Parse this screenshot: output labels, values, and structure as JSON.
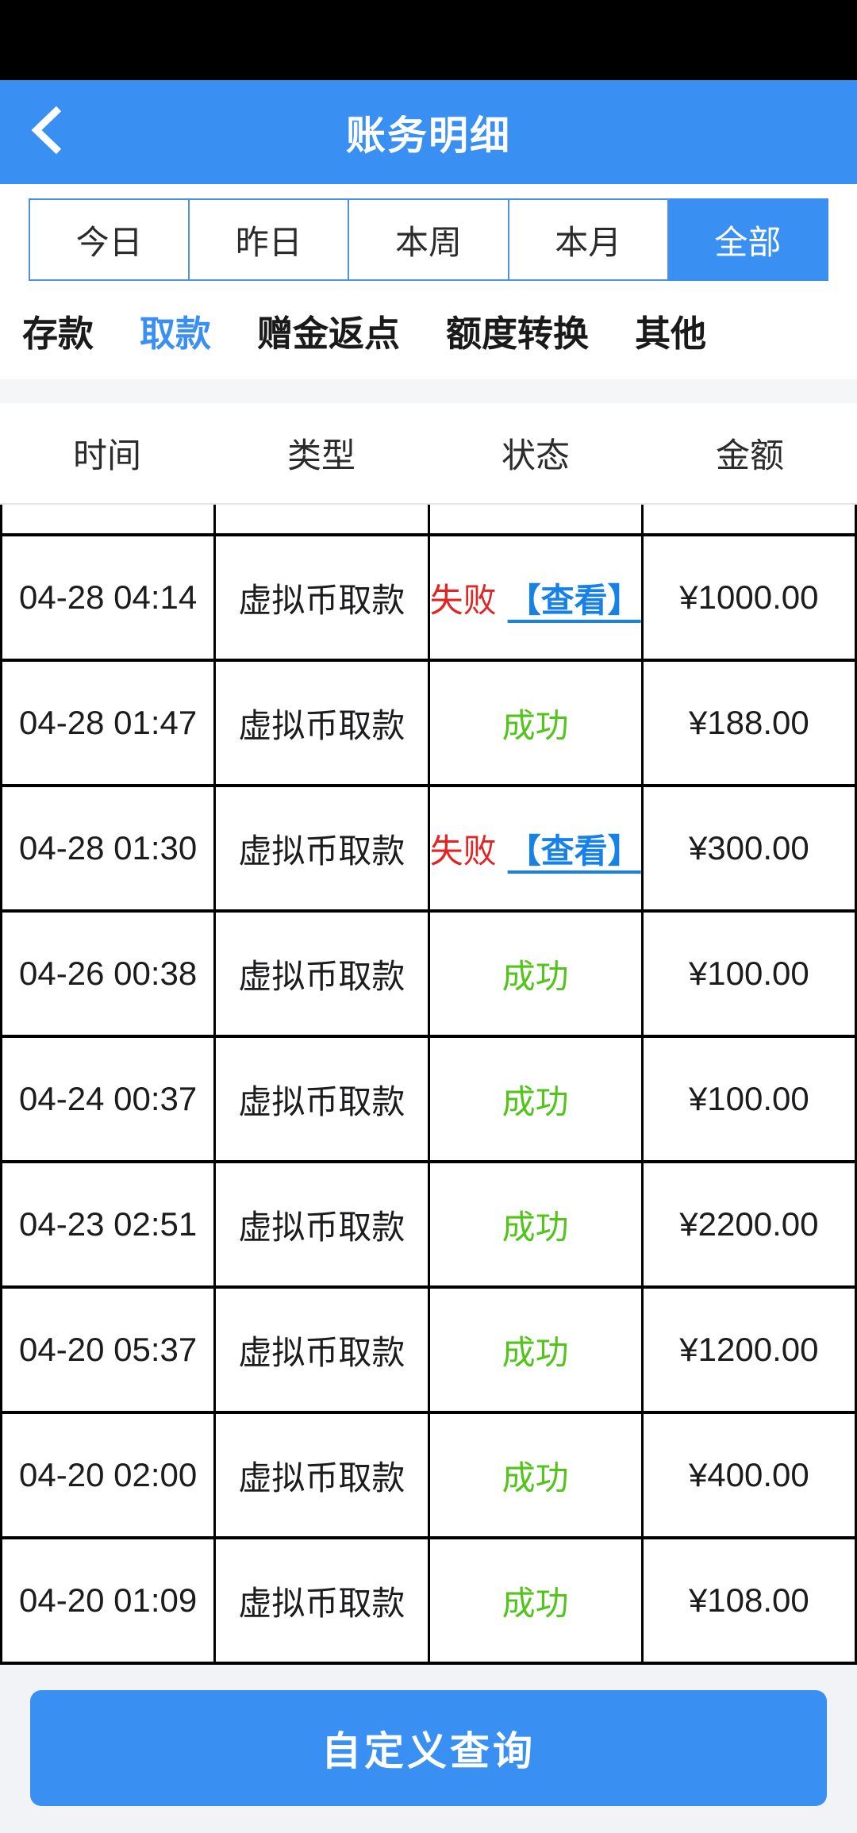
{
  "header": {
    "title": "账务明细",
    "back_icon": "chevron-left"
  },
  "date_filters": {
    "items": [
      {
        "label": "今日",
        "selected": false
      },
      {
        "label": "昨日",
        "selected": false
      },
      {
        "label": "本周",
        "selected": false
      },
      {
        "label": "本月",
        "selected": false
      },
      {
        "label": "全部",
        "selected": true
      }
    ]
  },
  "category_tabs": {
    "items": [
      {
        "label": "存款",
        "selected": false
      },
      {
        "label": "取款",
        "selected": true
      },
      {
        "label": "赠金返点",
        "selected": false
      },
      {
        "label": "额度转换",
        "selected": false
      },
      {
        "label": "其他",
        "selected": false
      }
    ]
  },
  "table": {
    "columns": [
      "时间",
      "类型",
      "状态",
      "金额"
    ],
    "rows": [
      {
        "time": "04-28 04:14",
        "type": "虚拟币取款",
        "status": "失败",
        "status_type": "failed",
        "action": "【查看】",
        "amount": "¥1000.00"
      },
      {
        "time": "04-28 01:47",
        "type": "虚拟币取款",
        "status": "成功",
        "status_type": "success",
        "action": "",
        "amount": "¥188.00"
      },
      {
        "time": "04-28 01:30",
        "type": "虚拟币取款",
        "status": "失败",
        "status_type": "failed",
        "action": "【查看】",
        "amount": "¥300.00"
      },
      {
        "time": "04-26 00:38",
        "type": "虚拟币取款",
        "status": "成功",
        "status_type": "success",
        "action": "",
        "amount": "¥100.00"
      },
      {
        "time": "04-24 00:37",
        "type": "虚拟币取款",
        "status": "成功",
        "status_type": "success",
        "action": "",
        "amount": "¥100.00"
      },
      {
        "time": "04-23 02:51",
        "type": "虚拟币取款",
        "status": "成功",
        "status_type": "success",
        "action": "",
        "amount": "¥2200.00"
      },
      {
        "time": "04-20 05:37",
        "type": "虚拟币取款",
        "status": "成功",
        "status_type": "success",
        "action": "",
        "amount": "¥1200.00"
      },
      {
        "time": "04-20 02:00",
        "type": "虚拟币取款",
        "status": "成功",
        "status_type": "success",
        "action": "",
        "amount": "¥400.00"
      },
      {
        "time": "04-20 01:09",
        "type": "虚拟币取款",
        "status": "成功",
        "status_type": "success",
        "action": "",
        "amount": "¥108.00"
      }
    ]
  },
  "footer": {
    "query_button_label": "自定义查询"
  },
  "colors": {
    "accent": "#3a8ff3",
    "link": "#1781e8",
    "danger": "#e02525",
    "success": "#52c41a",
    "page-gray": "#f1f3f6",
    "strip-gray": "#f5f6f8"
  }
}
